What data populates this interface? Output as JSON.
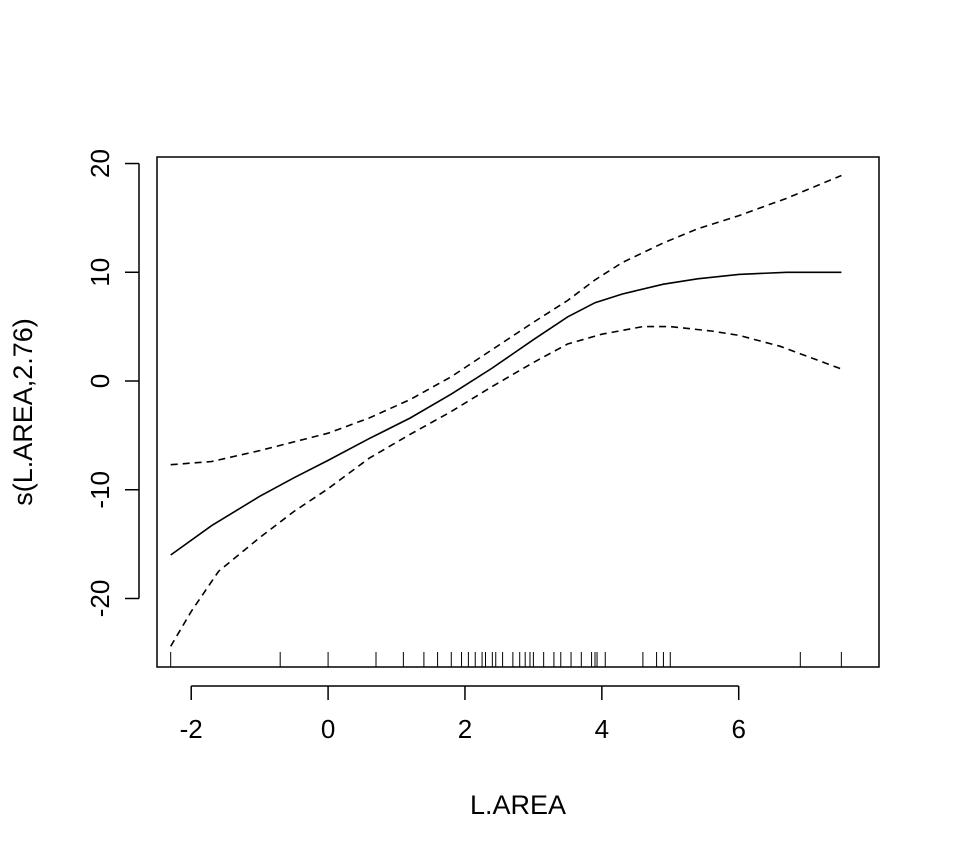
{
  "chart_data": {
    "type": "line",
    "title": "",
    "xlabel": "L.AREA",
    "ylabel": "s(L.AREA,2.76)",
    "xlim": [
      -2.5,
      8.05
    ],
    "ylim": [
      -26.3,
      20.6
    ],
    "xticks": [
      -2,
      0,
      2,
      4,
      6
    ],
    "yticks": [
      -20,
      -10,
      0,
      10,
      20
    ],
    "xtick_labels": [
      "-2",
      "0",
      "2",
      "4",
      "6"
    ],
    "ytick_labels": [
      "-20",
      "-10",
      "0",
      "10",
      "20"
    ],
    "grid": false,
    "legend": "none",
    "series": [
      {
        "style": "solid",
        "x": [
          -2.3,
          -1.7,
          -1.0,
          -0.5,
          0.0,
          0.6,
          1.2,
          1.8,
          2.4,
          3.0,
          3.5,
          3.9,
          4.3,
          4.9,
          5.4,
          6.0,
          6.7,
          7.5
        ],
        "y": [
          -16.0,
          -13.3,
          -10.6,
          -8.9,
          -7.3,
          -5.3,
          -3.4,
          -1.2,
          1.2,
          3.8,
          5.9,
          7.2,
          8.0,
          8.9,
          9.4,
          9.8,
          10.0,
          10.0
        ]
      },
      {
        "style": "dashed",
        "x": [
          -2.3,
          -1.7,
          -1.0,
          -0.5,
          0.0,
          0.6,
          1.2,
          1.8,
          2.4,
          3.0,
          3.5,
          3.9,
          4.3,
          4.9,
          5.4,
          6.0,
          6.7,
          7.5
        ],
        "y": [
          -7.7,
          -7.4,
          -6.4,
          -5.6,
          -4.8,
          -3.4,
          -1.7,
          0.4,
          2.9,
          5.4,
          7.4,
          9.3,
          10.9,
          12.7,
          14.0,
          15.2,
          16.8,
          18.9
        ]
      },
      {
        "style": "dashed",
        "x": [
          -2.3,
          -2.0,
          -1.6,
          -1.0,
          -0.5,
          0.0,
          0.6,
          1.2,
          1.8,
          2.4,
          3.0,
          3.5,
          4.0,
          4.6,
          5.0,
          5.6,
          6.0,
          6.6,
          7.5
        ],
        "y": [
          -24.4,
          -21.2,
          -17.5,
          -14.4,
          -12.0,
          -9.9,
          -7.1,
          -4.9,
          -2.8,
          -0.5,
          1.7,
          3.4,
          4.3,
          5.0,
          5.0,
          4.6,
          4.2,
          3.2,
          1.1
        ]
      }
    ],
    "rug": [
      -2.3,
      -0.7,
      0.0,
      0.7,
      1.1,
      1.4,
      1.6,
      1.8,
      1.95,
      2.05,
      2.15,
      2.25,
      2.3,
      2.4,
      2.45,
      2.55,
      2.7,
      2.8,
      2.88,
      2.95,
      3.0,
      3.15,
      3.3,
      3.4,
      3.55,
      3.7,
      3.85,
      3.9,
      3.93,
      4.05,
      4.6,
      4.8,
      4.9,
      5.0,
      6.9,
      7.5
    ]
  }
}
